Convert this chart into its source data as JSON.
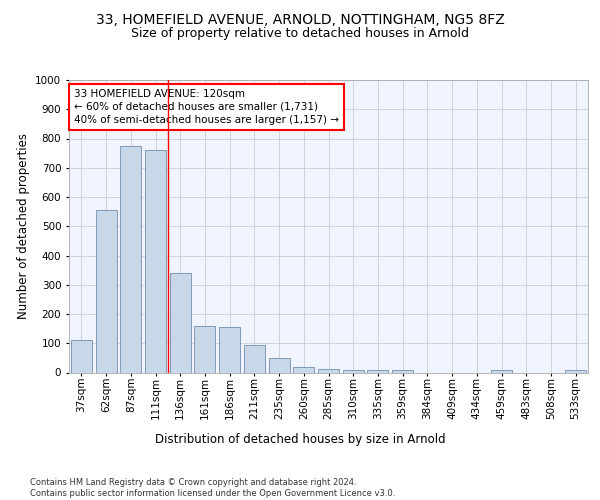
{
  "title1": "33, HOMEFIELD AVENUE, ARNOLD, NOTTINGHAM, NG5 8FZ",
  "title2": "Size of property relative to detached houses in Arnold",
  "xlabel": "Distribution of detached houses by size in Arnold",
  "ylabel": "Number of detached properties",
  "categories": [
    "37sqm",
    "62sqm",
    "87sqm",
    "111sqm",
    "136sqm",
    "161sqm",
    "186sqm",
    "211sqm",
    "235sqm",
    "260sqm",
    "285sqm",
    "310sqm",
    "335sqm",
    "359sqm",
    "384sqm",
    "409sqm",
    "434sqm",
    "459sqm",
    "483sqm",
    "508sqm",
    "533sqm"
  ],
  "values": [
    110,
    555,
    775,
    760,
    340,
    160,
    155,
    95,
    50,
    20,
    13,
    10,
    10,
    10,
    0,
    0,
    0,
    8,
    0,
    0,
    8
  ],
  "bar_color": "#c8d8e8",
  "bar_edge_color": "#7090b0",
  "red_line_x": 3.5,
  "annotation_text": "33 HOMEFIELD AVENUE: 120sqm\n← 60% of detached houses are smaller (1,731)\n40% of semi-detached houses are larger (1,157) →",
  "annotation_box_color": "white",
  "annotation_box_edge_color": "red",
  "red_line_color": "red",
  "ylim": [
    0,
    1000
  ],
  "yticks": [
    0,
    100,
    200,
    300,
    400,
    500,
    600,
    700,
    800,
    900,
    1000
  ],
  "grid_color": "#cccccc",
  "footnote": "Contains HM Land Registry data © Crown copyright and database right 2024.\nContains public sector information licensed under the Open Government Licence v3.0.",
  "bg_color": "#f0f4ff",
  "title1_fontsize": 10,
  "title2_fontsize": 9,
  "xlabel_fontsize": 8.5,
  "ylabel_fontsize": 8.5,
  "tick_fontsize": 7.5,
  "annotation_fontsize": 7.5,
  "footnote_fontsize": 6.0
}
